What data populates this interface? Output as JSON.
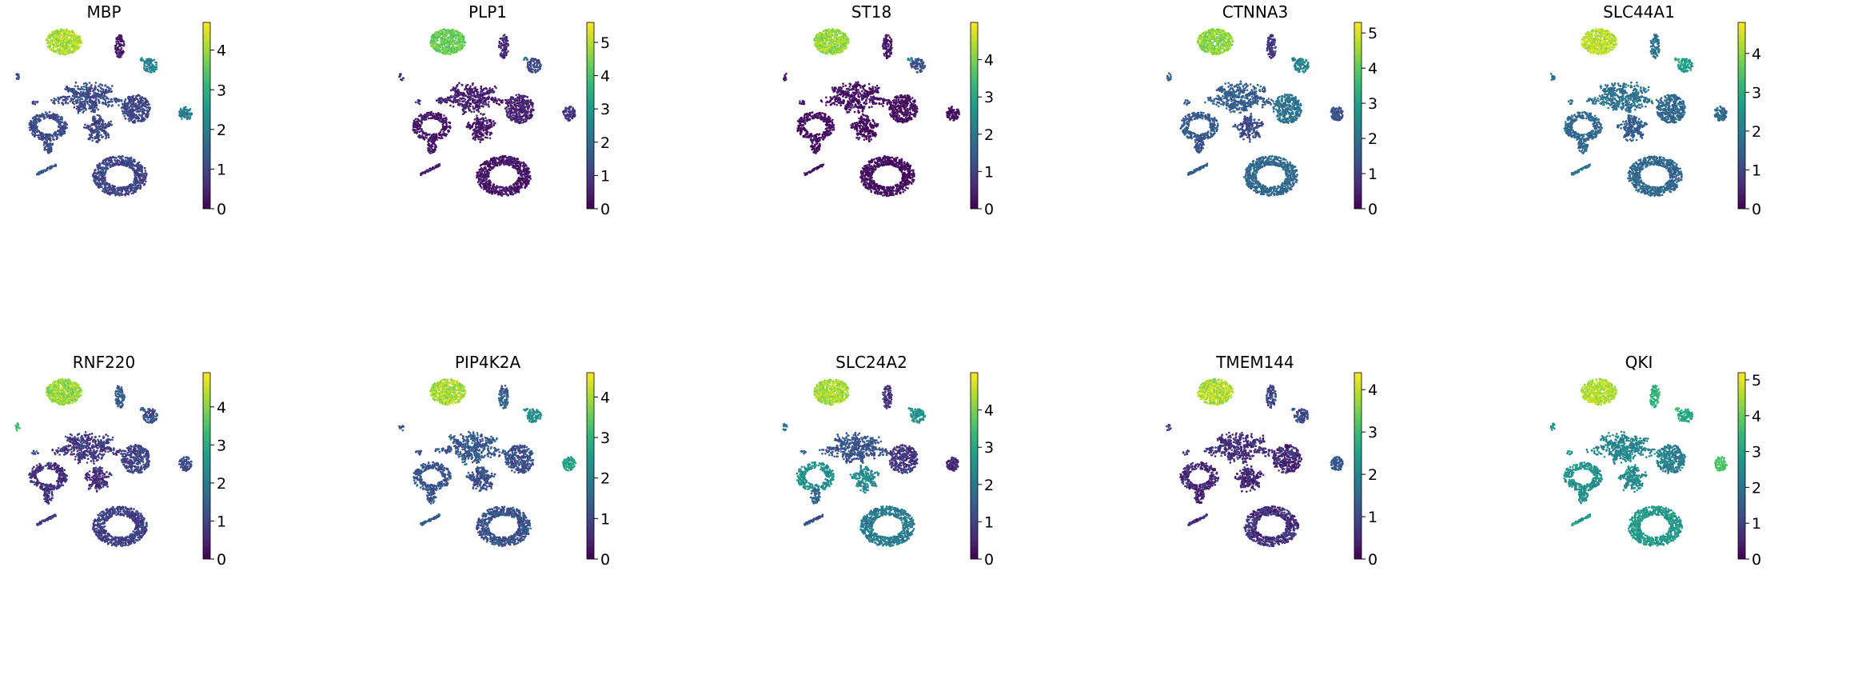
{
  "chart_data": {
    "type": "scatter",
    "subtype": "umap-feature-plot",
    "colormap_name": "viridis",
    "colormap": [
      "#440154",
      "#482878",
      "#3e4a89",
      "#31688e",
      "#26828e",
      "#1f9e89",
      "#35b779",
      "#6ece58",
      "#b5de2b",
      "#fde725"
    ],
    "axes_visible": false,
    "colorbar_placement": "right",
    "cluster_names": [
      "top-left-cluster",
      "small-top-mid",
      "tiny-green-cluster",
      "small-right-blob",
      "far-left-specks",
      "mid-left-dots",
      "center-web",
      "center-right-blob",
      "right-edge-blob",
      "left-ring",
      "center-small-web",
      "mid-left-spur",
      "lower-left-stick",
      "bottom-large-cluster"
    ],
    "panels": [
      {
        "gene": "MBP",
        "vmin": 0,
        "vmax": 4.7,
        "ticks": [
          "0",
          "1",
          "2",
          "3",
          "4"
        ],
        "levels": [
          4.1,
          0.4,
          2.0,
          2.1,
          1.0,
          1.0,
          1.1,
          1.0,
          2.0,
          1.1,
          1.0,
          1.1,
          1.3,
          1.0
        ]
      },
      {
        "gene": "PLP1",
        "vmin": 0,
        "vmax": 5.6,
        "ticks": [
          "0",
          "1",
          "2",
          "3",
          "4",
          "5"
        ],
        "levels": [
          4.3,
          0.6,
          2.4,
          1.3,
          0.6,
          0.5,
          0.5,
          0.5,
          0.8,
          0.3,
          0.3,
          0.4,
          0.4,
          0.3
        ]
      },
      {
        "gene": "ST18",
        "vmin": 0,
        "vmax": 5.0,
        "ticks": [
          "0",
          "1",
          "2",
          "3",
          "4"
        ],
        "levels": [
          4.2,
          0.3,
          2.2,
          1.3,
          0.2,
          0.2,
          0.2,
          0.1,
          0.2,
          0.1,
          0.1,
          0.1,
          0.2,
          0.1
        ]
      },
      {
        "gene": "CTNNA3",
        "vmin": 0,
        "vmax": 5.3,
        "ticks": [
          "0",
          "1",
          "2",
          "3",
          "4",
          "5"
        ],
        "levels": [
          4.4,
          0.8,
          2.3,
          2.4,
          1.5,
          1.5,
          1.6,
          2.0,
          1.3,
          1.5,
          1.2,
          1.3,
          1.5,
          1.8
        ]
      },
      {
        "gene": "SLC44A1",
        "vmin": 0,
        "vmax": 4.8,
        "ticks": [
          "0",
          "1",
          "2",
          "3",
          "4"
        ],
        "levels": [
          4.3,
          1.8,
          2.9,
          2.6,
          1.6,
          1.6,
          1.8,
          1.6,
          1.7,
          1.6,
          1.4,
          1.6,
          1.8,
          1.6
        ]
      },
      {
        "gene": "RNF220",
        "vmin": 0,
        "vmax": 4.9,
        "ticks": [
          "0",
          "1",
          "2",
          "3",
          "4"
        ],
        "levels": [
          4.1,
          1.4,
          1.6,
          1.2,
          3.2,
          1.0,
          0.8,
          1.0,
          1.2,
          0.7,
          0.7,
          0.8,
          0.9,
          0.9
        ]
      },
      {
        "gene": "PIP4K2A",
        "vmin": 0,
        "vmax": 4.6,
        "ticks": [
          "0",
          "1",
          "2",
          "3",
          "4"
        ],
        "levels": [
          4.0,
          1.4,
          2.1,
          2.2,
          1.2,
          1.2,
          1.3,
          1.1,
          2.6,
          1.2,
          1.1,
          1.2,
          1.3,
          1.2
        ]
      },
      {
        "gene": "SLC24A2",
        "vmin": 0,
        "vmax": 5.0,
        "ticks": [
          "0",
          "1",
          "2",
          "3",
          "4"
        ],
        "levels": [
          4.3,
          0.7,
          2.4,
          2.5,
          1.7,
          1.7,
          1.3,
          0.8,
          0.6,
          2.5,
          2.4,
          1.6,
          1.3,
          2.1
        ]
      },
      {
        "gene": "TMEM144",
        "vmin": 0,
        "vmax": 4.4,
        "ticks": [
          "0",
          "1",
          "2",
          "3",
          "4"
        ],
        "levels": [
          3.9,
          1.0,
          1.5,
          1.0,
          0.8,
          0.8,
          0.6,
          0.5,
          1.2,
          0.5,
          0.5,
          0.5,
          0.6,
          0.6
        ]
      },
      {
        "gene": "QKI",
        "vmin": 0,
        "vmax": 5.2,
        "ticks": [
          "0",
          "1",
          "2",
          "3",
          "4",
          "5"
        ],
        "levels": [
          4.6,
          3.4,
          3.5,
          3.1,
          2.6,
          2.6,
          2.4,
          2.2,
          3.7,
          2.6,
          2.5,
          2.6,
          2.8,
          2.8
        ]
      }
    ]
  }
}
